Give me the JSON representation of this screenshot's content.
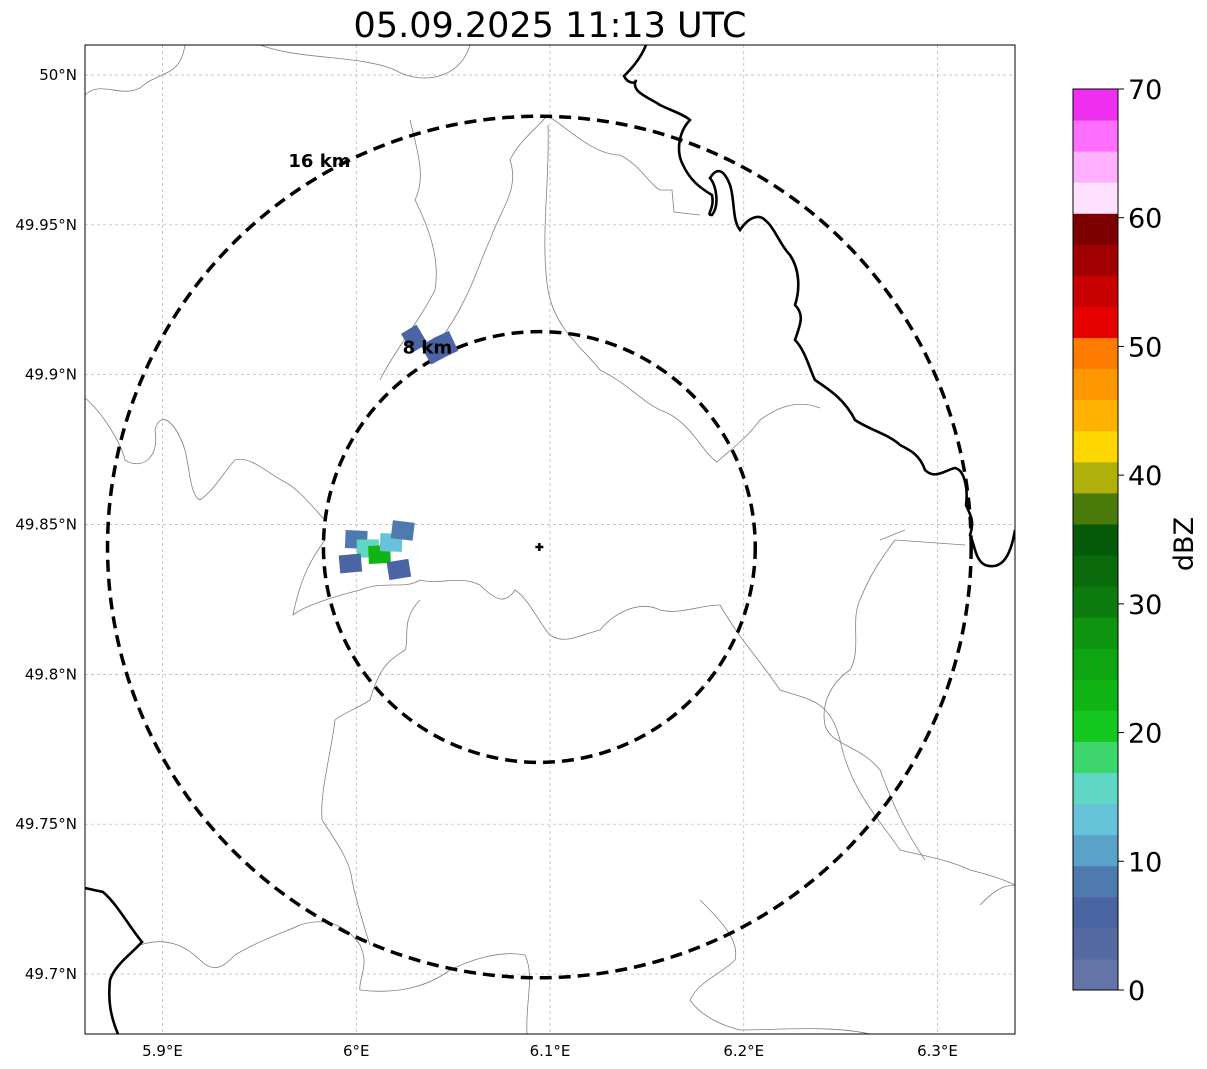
{
  "title": "05.09.2025 11:13 UTC",
  "map": {
    "lon_range": [
      5.86,
      6.34
    ],
    "lat_range": [
      49.68,
      50.01
    ],
    "x_ticks": [
      {
        "value": 5.9,
        "label": "5.9°E"
      },
      {
        "value": 6.0,
        "label": "6°E"
      },
      {
        "value": 6.1,
        "label": "6.1°E"
      },
      {
        "value": 6.2,
        "label": "6.2°E"
      },
      {
        "value": 6.3,
        "label": "6.3°E"
      }
    ],
    "y_ticks": [
      {
        "value": 49.7,
        "label": "49.7°N"
      },
      {
        "value": 49.75,
        "label": "49.75°N"
      },
      {
        "value": 49.8,
        "label": "49.8°N"
      },
      {
        "value": 49.85,
        "label": "49.85°N"
      },
      {
        "value": 49.9,
        "label": "49.9°N"
      },
      {
        "value": 49.95,
        "label": "49.95°N"
      },
      {
        "value": 50.0,
        "label": "50°N"
      }
    ],
    "grid": true,
    "radar_center": {
      "lon": 6.0945,
      "lat": 49.8425
    },
    "range_rings": [
      {
        "range_km": 8,
        "label": "8 km"
      },
      {
        "range_km": 16,
        "label": "16 km"
      }
    ],
    "echoes": [
      {
        "name": "echo-west-1",
        "lon": 6.0,
        "lat": 49.845,
        "dbz": 9
      },
      {
        "name": "echo-west-2",
        "lon": 6.006,
        "lat": 49.842,
        "dbz": 16
      },
      {
        "name": "echo-west-3",
        "lon": 6.012,
        "lat": 49.84,
        "dbz": 22
      },
      {
        "name": "echo-west-4",
        "lon": 6.018,
        "lat": 49.844,
        "dbz": 13
      },
      {
        "name": "echo-west-5",
        "lon": 6.024,
        "lat": 49.848,
        "dbz": 8
      },
      {
        "name": "echo-west-6",
        "lon": 5.997,
        "lat": 49.837,
        "dbz": 5
      },
      {
        "name": "echo-west-7",
        "lon": 6.022,
        "lat": 49.835,
        "dbz": 6
      },
      {
        "name": "echo-north-1",
        "lon": 6.03,
        "lat": 49.912,
        "dbz": 7
      },
      {
        "name": "echo-north-2",
        "lon": 6.04,
        "lat": 49.908,
        "dbz": 6
      },
      {
        "name": "echo-north-3",
        "lon": 6.046,
        "lat": 49.91,
        "dbz": 5
      }
    ]
  },
  "colorbar": {
    "label": "dBZ",
    "min": 0,
    "max": 70,
    "tick_labels": [
      "0",
      "10",
      "20",
      "30",
      "40",
      "50",
      "60",
      "70"
    ],
    "colors": [
      "#6374a6",
      "#556aa2",
      "#4a64a4",
      "#4f7ab0",
      "#5ba2c8",
      "#67c3da",
      "#60d6c4",
      "#3dd66c",
      "#14c81f",
      "#10b515",
      "#0fa512",
      "#0e940f",
      "#0c7c0e",
      "#0a6a0c",
      "#055a0a",
      "#4a7b0a",
      "#afb10a",
      "#ffd700",
      "#ffb300",
      "#ff9800",
      "#ff7c00",
      "#e60000",
      "#c80000",
      "#a00000",
      "#7c0000",
      "#ffe1ff",
      "#ffb0ff",
      "#ff6eff",
      "#f030f0"
    ]
  },
  "colors": {
    "rings": "#000000",
    "border": "#000000",
    "admin": "#808080",
    "grid": "#b0b0b0"
  }
}
